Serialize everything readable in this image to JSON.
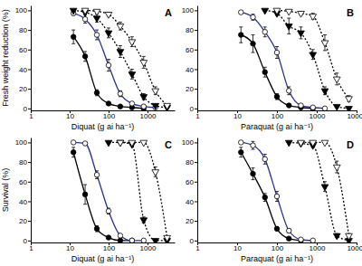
{
  "chart_data": [
    {
      "type": "line",
      "title": "A",
      "y_label": "Fresh weight reduction (%)",
      "x_label": "Diquat (g ai ha⁻¹)",
      "log": "x",
      "xlim": [
        1,
        5000
      ],
      "ylim": [
        -2,
        105
      ],
      "xticks": [
        1,
        10,
        100,
        1000
      ],
      "yticks": [
        0,
        20,
        40,
        60,
        80,
        100
      ],
      "series": [
        {
          "color": "#000000",
          "marker": "circle-filled",
          "line_style": "solid",
          "x": [
            12.5,
            25,
            50,
            100,
            200,
            400,
            800
          ],
          "values": [
            73,
            53,
            16,
            5,
            2,
            1,
            0
          ],
          "errors": [
            7,
            5,
            3,
            1,
            1,
            0,
            0
          ]
        },
        {
          "color": "#2e3192",
          "marker": "circle-open",
          "line_style": "solid",
          "x": [
            12.5,
            25,
            50,
            100,
            200,
            400,
            800,
            1600
          ],
          "values": [
            97,
            91,
            75,
            44,
            15,
            5,
            2,
            1
          ],
          "errors": [
            2,
            4,
            5,
            6,
            3,
            1,
            1,
            0
          ]
        },
        {
          "color": "#000000",
          "marker": "triangle-down-filled",
          "line_style": "dotted",
          "x": [
            12.5,
            25,
            50,
            100,
            200,
            400,
            800,
            1600,
            3200
          ],
          "values": [
            100,
            98,
            92,
            77,
            58,
            35,
            12,
            3,
            1
          ],
          "errors": [
            0,
            1,
            4,
            5,
            6,
            5,
            3,
            1,
            0
          ]
        },
        {
          "color": "#000000",
          "marker": "triangle-down-open",
          "line_style": "dotted",
          "x": [
            25,
            50,
            100,
            200,
            400,
            800,
            1600,
            3200
          ],
          "values": [
            100,
            99,
            96,
            84,
            68,
            47,
            18,
            3
          ],
          "errors": [
            0,
            1,
            2,
            4,
            5,
            6,
            4,
            1
          ]
        }
      ]
    },
    {
      "type": "line",
      "title": "B",
      "x_label": "Paraquat (g ai ha⁻¹)",
      "log": "x",
      "xlim": [
        1,
        10000
      ],
      "ylim": [
        -2,
        105
      ],
      "xticks": [
        1,
        10,
        100,
        1000,
        10000
      ],
      "yticks": [
        0,
        20,
        40,
        60,
        80,
        100
      ],
      "series": [
        {
          "color": "#000000",
          "marker": "circle-filled",
          "line_style": "solid",
          "x": [
            12.5,
            25,
            50,
            100,
            200,
            400,
            800
          ],
          "values": [
            75,
            66,
            37,
            12,
            3,
            1,
            0
          ],
          "errors": [
            8,
            9,
            5,
            3,
            1,
            0,
            0
          ]
        },
        {
          "color": "#2e3192",
          "marker": "circle-open",
          "line_style": "solid",
          "x": [
            12.5,
            25,
            50,
            100,
            200,
            400,
            800,
            1600
          ],
          "values": [
            98,
            93,
            78,
            57,
            18,
            3,
            1,
            0
          ],
          "errors": [
            1,
            3,
            5,
            6,
            4,
            1,
            0,
            0
          ]
        },
        {
          "color": "#000000",
          "marker": "triangle-down-filled",
          "line_style": "dotted",
          "x": [
            50,
            100,
            200,
            400,
            800,
            1600,
            3200,
            6400
          ],
          "values": [
            100,
            97,
            84,
            77,
            55,
            18,
            2,
            0
          ],
          "errors": [
            0,
            2,
            8,
            6,
            5,
            4,
            1,
            0
          ]
        },
        {
          "color": "#000000",
          "marker": "triangle-down-open",
          "line_style": "dotted",
          "x": [
            100,
            200,
            400,
            800,
            1600,
            3200,
            6400
          ],
          "values": [
            100,
            99,
            97,
            94,
            67,
            30,
            10
          ],
          "errors": [
            0,
            1,
            2,
            3,
            8,
            6,
            3
          ]
        }
      ]
    },
    {
      "type": "line",
      "title": "C",
      "y_label": "Survival (%)",
      "x_label": "Diquat (g ai ha⁻¹)",
      "log": "x",
      "xlim": [
        1,
        5000
      ],
      "ylim": [
        -2,
        105
      ],
      "xticks": [
        1,
        10,
        100,
        1000
      ],
      "yticks": [
        0,
        20,
        40,
        60,
        80,
        100
      ],
      "series": [
        {
          "color": "#000000",
          "marker": "circle-filled",
          "line_style": "solid",
          "x": [
            12.5,
            25,
            50,
            100,
            200,
            400
          ],
          "values": [
            90,
            47,
            12,
            3,
            0,
            0
          ],
          "errors": [
            5,
            10,
            3,
            1,
            0,
            0
          ]
        },
        {
          "color": "#2e3192",
          "marker": "circle-open",
          "line_style": "solid",
          "x": [
            12.5,
            25,
            50,
            100,
            200,
            400,
            800
          ],
          "values": [
            100,
            99,
            67,
            30,
            5,
            0,
            0
          ],
          "errors": [
            0,
            1,
            4,
            3,
            1,
            0,
            0
          ]
        },
        {
          "color": "#000000",
          "marker": "triangle-down-filled",
          "line_style": "dotted",
          "x": [
            100,
            200,
            400,
            800,
            1600,
            3200
          ],
          "values": [
            100,
            100,
            98,
            21,
            0,
            0
          ],
          "errors": [
            0,
            0,
            1,
            3,
            0,
            0
          ]
        },
        {
          "color": "#000000",
          "marker": "triangle-down-open",
          "line_style": "dotted",
          "x": [
            200,
            400,
            800,
            1600,
            3200
          ],
          "values": [
            100,
            100,
            100,
            70,
            3
          ],
          "errors": [
            0,
            0,
            0,
            5,
            1
          ]
        }
      ]
    },
    {
      "type": "line",
      "title": "D",
      "x_label": "Paraquat (g ai ha⁻¹)",
      "log": "x",
      "xlim": [
        1,
        10000
      ],
      "ylim": [
        -2,
        105
      ],
      "xticks": [
        1,
        10,
        100,
        1000,
        10000
      ],
      "yticks": [
        0,
        20,
        40,
        60,
        80,
        100
      ],
      "series": [
        {
          "color": "#000000",
          "marker": "circle-filled",
          "line_style": "solid",
          "x": [
            12.5,
            25,
            50,
            100,
            200,
            400
          ],
          "values": [
            90,
            68,
            44,
            12,
            2,
            0
          ],
          "errors": [
            5,
            6,
            4,
            2,
            1,
            0
          ]
        },
        {
          "color": "#2e3192",
          "marker": "circle-open",
          "line_style": "solid",
          "x": [
            12.5,
            25,
            50,
            100,
            200,
            400,
            800
          ],
          "values": [
            100,
            97,
            83,
            45,
            10,
            1,
            0
          ],
          "errors": [
            0,
            4,
            5,
            5,
            2,
            0,
            0
          ]
        },
        {
          "color": "#000000",
          "marker": "triangle-down-filled",
          "line_style": "dotted",
          "x": [
            200,
            400,
            800,
            1600,
            3200,
            6400
          ],
          "values": [
            100,
            99,
            97,
            55,
            5,
            0
          ],
          "errors": [
            0,
            1,
            2,
            5,
            2,
            0
          ]
        },
        {
          "color": "#000000",
          "marker": "triangle-down-open",
          "line_style": "dotted",
          "x": [
            400,
            800,
            1600,
            3200,
            6400
          ],
          "values": [
            100,
            100,
            100,
            75,
            5
          ],
          "errors": [
            0,
            0,
            0,
            6,
            2
          ]
        }
      ]
    }
  ]
}
